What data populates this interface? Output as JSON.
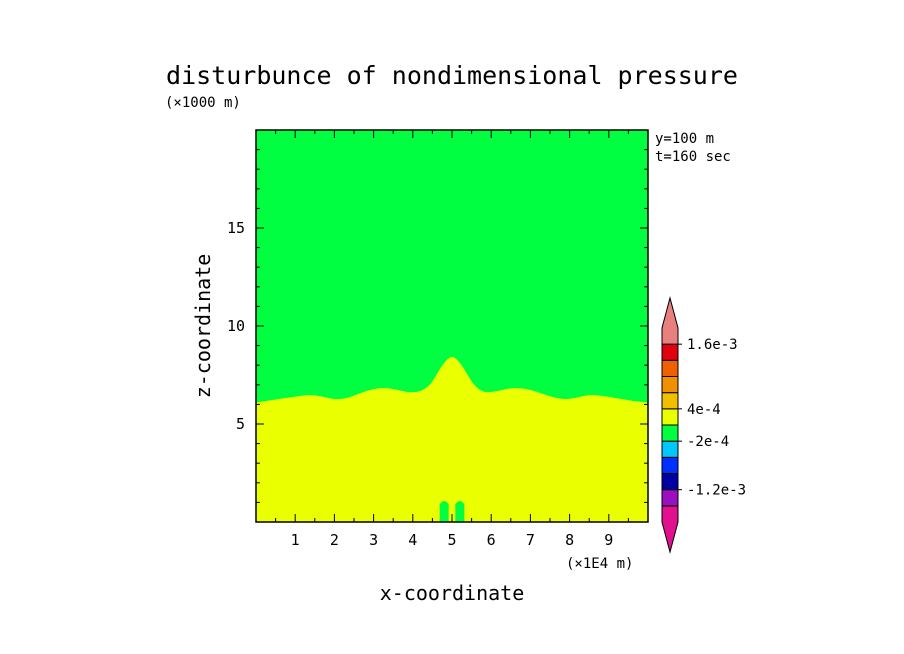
{
  "chart_data": {
    "type": "contour",
    "title": "disturbunce of nondimensional pressure",
    "y_unit_label": "(×1000 m)",
    "x_unit_label": "(×1E4 m)",
    "xlabel": "x-coordinate",
    "ylabel": "z-coordinate",
    "annotations": [
      "y=100 m",
      "t=160 sec"
    ],
    "xlim": [
      0,
      10
    ],
    "ylim": [
      0,
      20
    ],
    "x_ticks": [
      1,
      2,
      3,
      4,
      5,
      6,
      7,
      8,
      9
    ],
    "y_ticks": [
      5,
      10,
      15
    ],
    "y_ticks_labeled": [
      5,
      10,
      15
    ],
    "upper_region_color": "#00ff40",
    "lower_region_color": "#eaff00",
    "boundary_curve": {
      "x": [
        0,
        0.5,
        1.0,
        1.4,
        1.7,
        2.0,
        2.3,
        2.7,
        3.0,
        3.3,
        3.6,
        3.9,
        4.2,
        4.45,
        4.6,
        4.75,
        4.9,
        5.0,
        5.1,
        5.25,
        5.4,
        5.55,
        5.8,
        6.1,
        6.4,
        6.7,
        7.0,
        7.3,
        7.6,
        7.9,
        8.2,
        8.5,
        8.8,
        9.1,
        9.4,
        9.7,
        10.0
      ],
      "z": [
        6.1,
        6.25,
        6.4,
        6.5,
        6.4,
        6.25,
        6.3,
        6.6,
        6.8,
        6.85,
        6.75,
        6.6,
        6.65,
        7.0,
        7.5,
        8.0,
        8.35,
        8.45,
        8.35,
        8.0,
        7.5,
        7.0,
        6.6,
        6.65,
        6.8,
        6.85,
        6.75,
        6.55,
        6.35,
        6.25,
        6.35,
        6.5,
        6.45,
        6.35,
        6.25,
        6.15,
        6.1
      ]
    },
    "small_features": [
      {
        "x_center": 4.8,
        "z_top": 1.1,
        "color": "#00ff40"
      },
      {
        "x_center": 5.2,
        "z_top": 1.1,
        "color": "#00ff40"
      }
    ],
    "colorbar": {
      "colors": [
        "#e0108e",
        "#9a10c0",
        "#0000a0",
        "#0030ff",
        "#00c8ff",
        "#00ff40",
        "#eaff00",
        "#f0c000",
        "#f09000",
        "#f06000",
        "#e00010",
        "#e88080"
      ],
      "labels": [
        {
          "text": "-1.2e-3",
          "boundary": 2
        },
        {
          "text": "-2e-4",
          "boundary": 5
        },
        {
          "text": "4e-4",
          "boundary": 7
        },
        {
          "text": "1.6e-3",
          "boundary": 11
        }
      ]
    }
  }
}
